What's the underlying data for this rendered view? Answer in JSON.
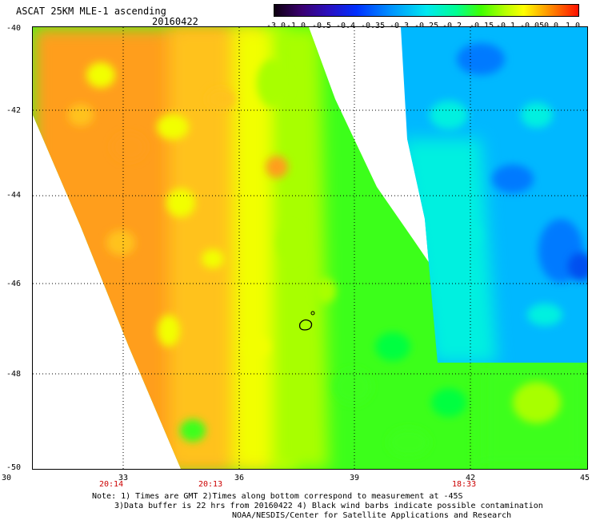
{
  "header": {
    "title": "ASCAT 25KM MLE-1 ascending",
    "date": "20160422"
  },
  "colorbar": {
    "labels": [
      "-3.0",
      "-1.0",
      "-0.5",
      "-0.4",
      "-0.35",
      "-0.3",
      "-0.25",
      "-0.2",
      "-0.15",
      "-0.1",
      "-0.05",
      "0.0",
      "1.0"
    ],
    "colors": [
      "#0d0010",
      "#3a0070",
      "#2a10c0",
      "#0030ff",
      "#0090ff",
      "#00e8f0",
      "#00ff90",
      "#40ff00",
      "#b8ff00",
      "#ffff00",
      "#ffb000",
      "#ff6000",
      "#ff1000"
    ]
  },
  "map": {
    "lat_labels": [
      "-40",
      "-42",
      "-44",
      "-46",
      "-48",
      "-50"
    ],
    "lon_labels": [
      "30",
      "33",
      "36",
      "39",
      "42",
      "45"
    ],
    "time_labels": [
      "20:14",
      "20:13",
      "18:33"
    ],
    "palette": {
      "orange": "#ff9e1a",
      "light_orange": "#ffc21a",
      "yellow": "#f2ff00",
      "yellow_green": "#a8ff00",
      "green": "#3cff1a",
      "bright_green": "#00ff40",
      "cyan": "#00f0e0",
      "light_blue": "#00b8ff",
      "blue": "#007aff",
      "gap": "#ffffff"
    }
  },
  "notes": {
    "line1": "Note: 1) Times are GMT 2)Times along bottom correspond to measurement at -45S",
    "line2": "3)Data buffer is 22 hrs from 20160422 4) Black wind barbs indicate possible contamination",
    "line3": "NOAA/NESDIS/Center for Satellite Applications and Research"
  }
}
